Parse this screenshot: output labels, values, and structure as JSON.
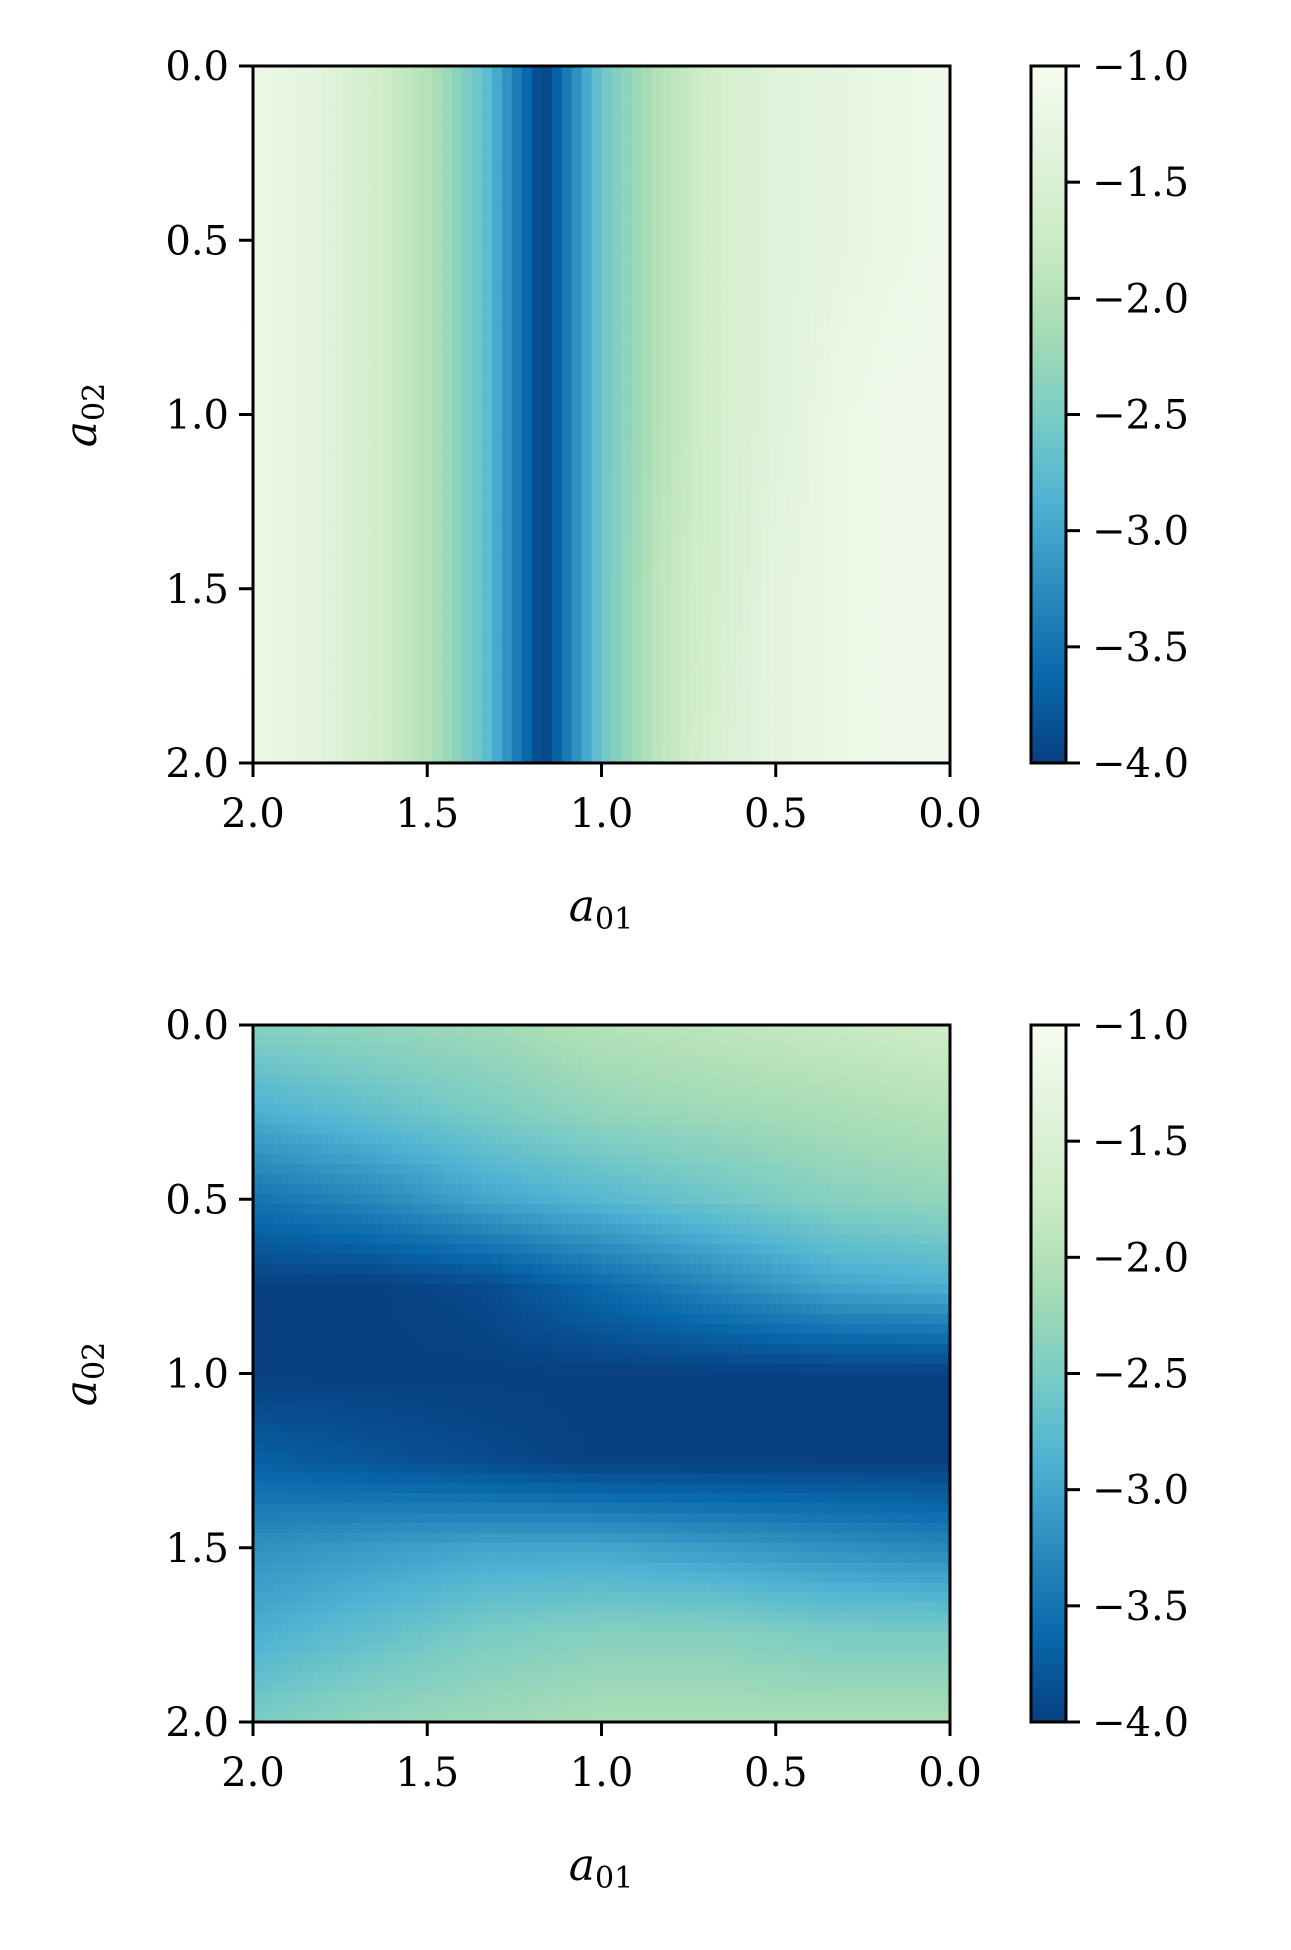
{
  "colorscale": {
    "name": "GnBu_r",
    "stops": [
      "#084081",
      "#0868ac",
      "#2b8cbe",
      "#4eb3d3",
      "#7bccc4",
      "#a8ddb5",
      "#ccebc5",
      "#e0f3db",
      "#f7fcf0"
    ]
  },
  "chart_data": [
    {
      "type": "heatmap",
      "xlabel": "a01",
      "ylabel": "a02",
      "xlim": [
        2.0,
        0.0
      ],
      "ylim": [
        2.0,
        0.0
      ],
      "x_ticks": [
        "2.0",
        "1.5",
        "1.0",
        "0.5",
        "0.0"
      ],
      "y_ticks": [
        "0.0",
        "0.5",
        "1.0",
        "1.5",
        "2.0"
      ],
      "colorbar_range": [
        -4.0,
        -1.0
      ],
      "colorbar_ticks": [
        "−1.0",
        "−1.5",
        "−2.0",
        "−2.5",
        "−3.0",
        "−3.5",
        "−4.0"
      ],
      "grid": [
        [
          -1.2,
          -1.3,
          -1.6,
          -2.0,
          -2.7,
          -4.0,
          -2.6,
          -2.0,
          -1.6,
          -1.4,
          -1.3,
          -1.2,
          -1.1
        ],
        [
          -1.2,
          -1.3,
          -1.6,
          -2.0,
          -2.7,
          -4.0,
          -2.6,
          -2.0,
          -1.6,
          -1.4,
          -1.3,
          -1.2,
          -1.1
        ],
        [
          -1.2,
          -1.3,
          -1.6,
          -2.0,
          -2.7,
          -4.0,
          -2.6,
          -2.0,
          -1.6,
          -1.4,
          -1.2,
          -1.1,
          -1.1
        ],
        [
          -1.2,
          -1.3,
          -1.6,
          -2.0,
          -2.7,
          -4.0,
          -2.6,
          -1.9,
          -1.6,
          -1.3,
          -1.2,
          -1.1,
          -1.1
        ],
        [
          -1.2,
          -1.3,
          -1.6,
          -2.0,
          -2.7,
          -4.0,
          -2.6,
          -1.9,
          -1.5,
          -1.3,
          -1.2,
          -1.1,
          -1.1
        ]
      ]
    },
    {
      "type": "heatmap",
      "xlabel": "a01",
      "ylabel": "a02",
      "xlim": [
        2.0,
        0.0
      ],
      "ylim": [
        2.0,
        0.0
      ],
      "x_ticks": [
        "2.0",
        "1.5",
        "1.0",
        "0.5",
        "0.0"
      ],
      "y_ticks": [
        "0.0",
        "0.5",
        "1.0",
        "1.5",
        "2.0"
      ],
      "colorbar_range": [
        -4.0,
        -1.0
      ],
      "colorbar_ticks": [
        "−1.0",
        "−1.5",
        "−2.0",
        "−2.5",
        "−3.0",
        "−3.5",
        "−4.0"
      ],
      "grid": [
        [
          -2.4,
          -2.3,
          -2.2,
          -2.0,
          -1.9,
          -1.8,
          -1.7
        ],
        [
          -2.9,
          -2.7,
          -2.5,
          -2.3,
          -2.2,
          -2.1,
          -2.0
        ],
        [
          -3.5,
          -3.3,
          -3.0,
          -2.8,
          -2.6,
          -2.4,
          -2.3
        ],
        [
          -4.0,
          -4.0,
          -3.9,
          -3.6,
          -3.3,
          -3.0,
          -2.9
        ],
        [
          -4.0,
          -4.0,
          -4.0,
          -4.0,
          -4.0,
          -4.0,
          -4.0
        ],
        [
          -3.7,
          -3.8,
          -3.9,
          -4.0,
          -4.0,
          -4.0,
          -4.0
        ],
        [
          -3.2,
          -3.1,
          -3.0,
          -3.0,
          -3.1,
          -3.2,
          -3.3
        ],
        [
          -2.9,
          -2.7,
          -2.5,
          -2.4,
          -2.4,
          -2.5,
          -2.5
        ],
        [
          -2.5,
          -2.3,
          -2.2,
          -2.1,
          -2.1,
          -2.1,
          -2.1
        ]
      ]
    }
  ]
}
